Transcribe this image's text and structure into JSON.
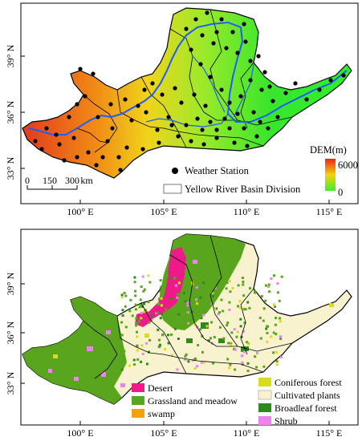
{
  "top_panel": {
    "axes": {
      "y_ticks": [
        "39° N",
        "36° N",
        "33° N"
      ],
      "x_ticks": [
        "100° E",
        "105° E",
        "110° E",
        "115° E"
      ]
    },
    "legend": {
      "weather_station": "Weather Station",
      "basin_division": "Yellow River  Basin Division",
      "dem_title": "DEM(m)",
      "dem_max": "6000",
      "dem_min": "0",
      "dem_colors": {
        "high": "#e8241c",
        "mid": "#f5d30b",
        "low": "#3cf02c"
      }
    },
    "scale_bar": {
      "labels": [
        "0",
        "150",
        "300"
      ],
      "unit": "km"
    },
    "colors": {
      "river": "#1f5cff",
      "station": "#000000",
      "boundary": "#000000"
    }
  },
  "bottom_panel": {
    "axes": {
      "y_ticks": [
        "39° N",
        "36° N",
        "33° N"
      ],
      "x_ticks": [
        "100° E",
        "105° E",
        "110° E",
        "115° E"
      ]
    },
    "legend": [
      {
        "label": "Desert",
        "color": "#ee1a8a"
      },
      {
        "label": "Grassland and meadow",
        "color": "#5aa51e"
      },
      {
        "label": "swamp",
        "color": "#f5a20a"
      },
      {
        "label": "Coniferous forest",
        "color": "#d9dc1e"
      },
      {
        "label": "Cultivated plants",
        "color": "#f8f2cf"
      },
      {
        "label": "Broadleaf forest",
        "color": "#2e8a1c"
      },
      {
        "label": "Shrub",
        "color": "#ee82ee"
      }
    ]
  }
}
